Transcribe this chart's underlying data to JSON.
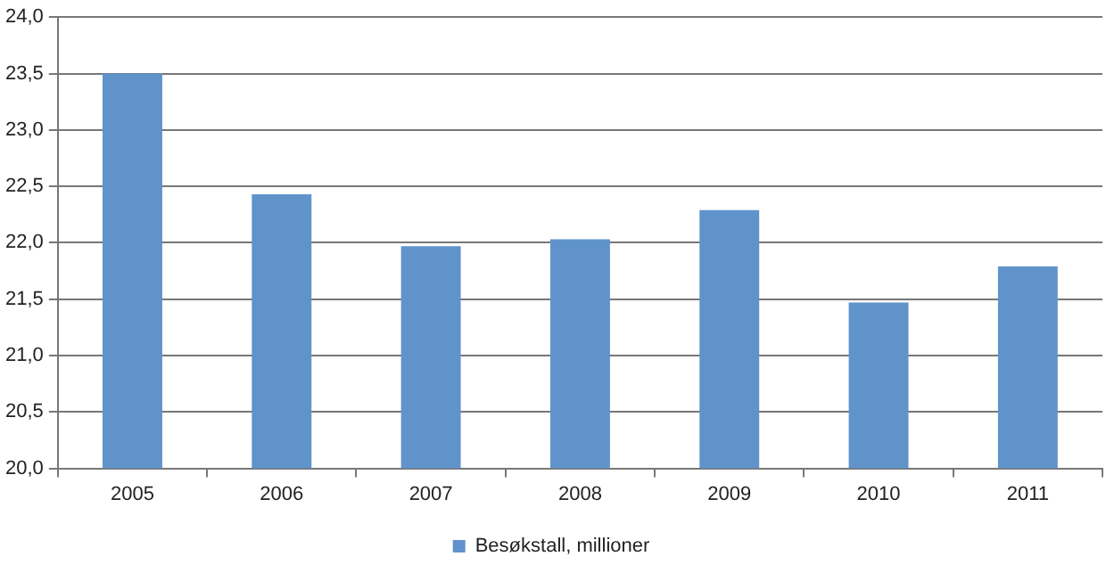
{
  "chart_data": {
    "type": "bar",
    "categories": [
      "2005",
      "2006",
      "2007",
      "2008",
      "2009",
      "2010",
      "2011"
    ],
    "series": [
      {
        "name": "Besøkstall, millioner",
        "color": "#6193cb",
        "values": [
          23.5,
          22.43,
          21.97,
          22.03,
          22.29,
          21.47,
          21.79
        ]
      }
    ],
    "ylim": [
      20,
      24
    ],
    "yticks": [
      {
        "value": 20,
        "label": "20,0"
      },
      {
        "value": 20.5,
        "label": "20,5"
      },
      {
        "value": 21,
        "label": "21,0"
      },
      {
        "value": 21.5,
        "label": "21,5"
      },
      {
        "value": 22,
        "label": "22,0"
      },
      {
        "value": 22.5,
        "label": "22,5"
      },
      {
        "value": 23,
        "label": "23,0"
      },
      {
        "value": 23.5,
        "label": "23,5"
      },
      {
        "value": 24,
        "label": "24,0"
      }
    ],
    "grid": "y",
    "legend": "bottom"
  }
}
